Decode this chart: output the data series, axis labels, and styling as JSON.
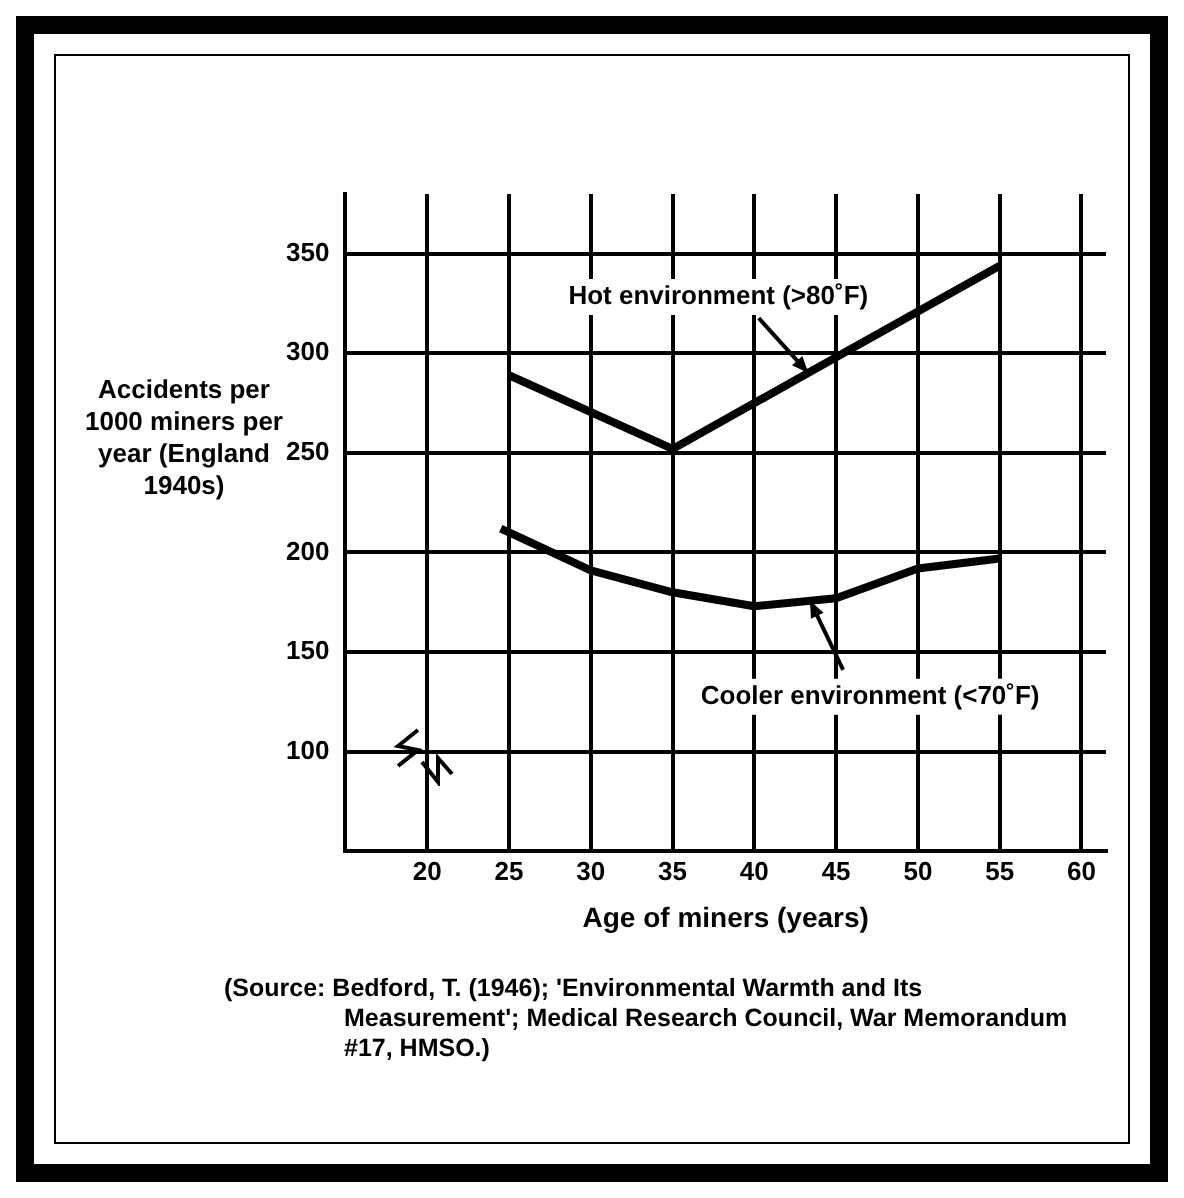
{
  "chart_data": {
    "type": "line",
    "xlabel": "Age of miners (years)",
    "ylabel": "Accidents per 1000 miners per year (England 1940s)",
    "xlim": [
      15,
      61.5
    ],
    "xticks": [
      20,
      25,
      30,
      35,
      40,
      45,
      50,
      55,
      60
    ],
    "ylim": [
      50,
      380
    ],
    "yticks": [
      {
        "value": 50,
        "label": null
      },
      100,
      150,
      200,
      250,
      300,
      350
    ],
    "grid": true,
    "legend": false,
    "marker": "none",
    "line_style": "solid",
    "series": [
      {
        "name": "Hot environment (>80˚F)",
        "color": "#000000",
        "x": [
          25,
          35,
          45,
          55
        ],
        "values": [
          289,
          252,
          298,
          344
        ]
      },
      {
        "name": "Cooler environment (<70˚F)",
        "color": "#000000",
        "x": [
          24.5,
          30,
          35,
          40,
          45,
          50,
          55
        ],
        "values": [
          212,
          191,
          180,
          173,
          177,
          192,
          197
        ]
      }
    ],
    "annotations": [
      "(Source: Bedford, T. (1946); 'Environmental Warmth and Its Measurement'; Medical Research Council, War Memorandum #17, HMSO.)"
    ]
  }
}
